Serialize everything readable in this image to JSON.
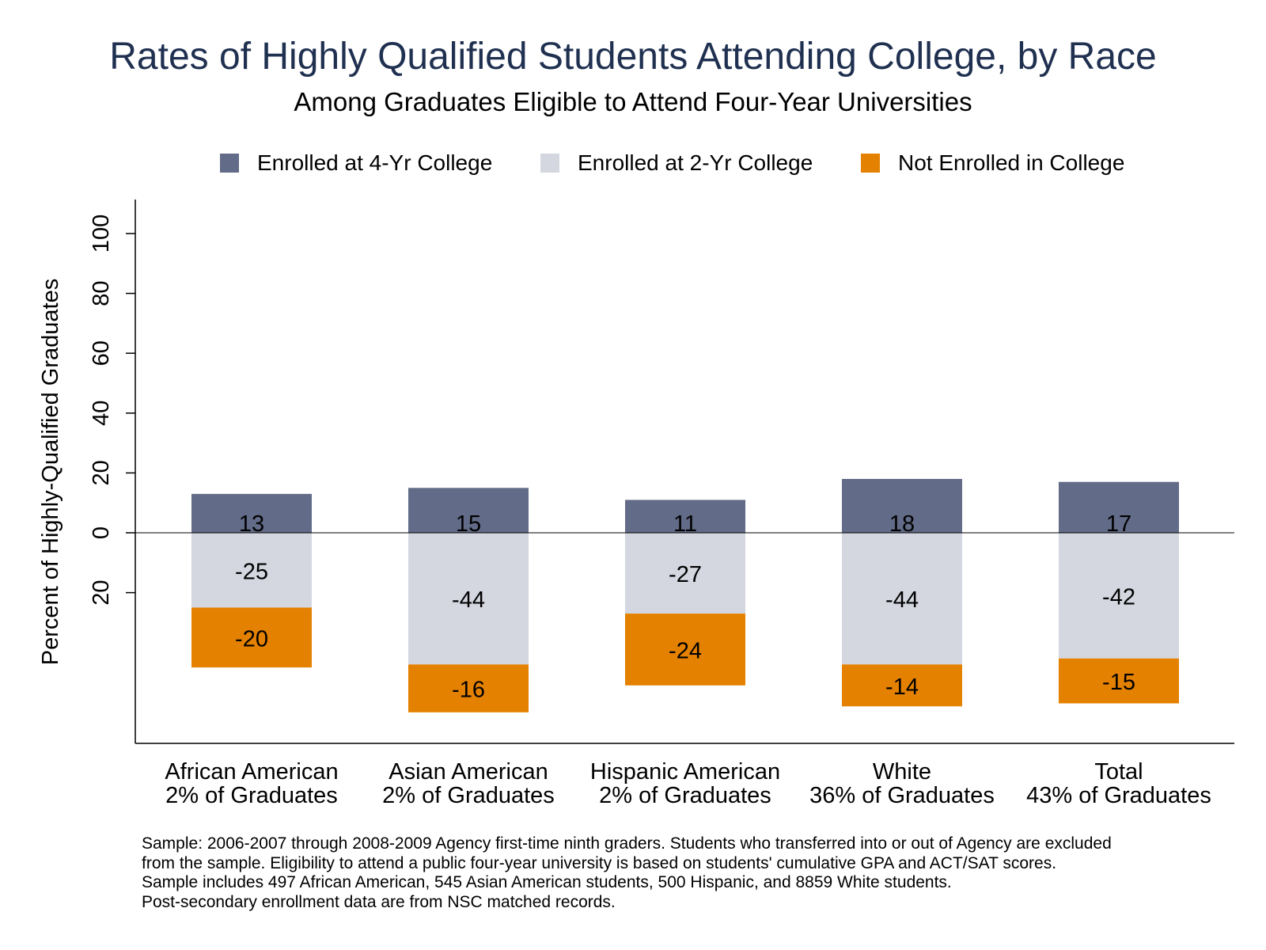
{
  "chart_data": {
    "type": "bar",
    "stacked": true,
    "title": "Rates of Highly Qualified Students Attending College, by Race",
    "subtitle": "Among Graduates Eligible to Attend Four-Year Universities",
    "ylabel": "Percent of Highly-Qualified Graduates",
    "xlabel": "",
    "ylim": [
      -70,
      100
    ],
    "yticks": [
      {
        "value": 100,
        "label": "100"
      },
      {
        "value": 80,
        "label": "80"
      },
      {
        "value": 60,
        "label": "60"
      },
      {
        "value": 40,
        "label": "40"
      },
      {
        "value": 20,
        "label": "20"
      },
      {
        "value": 0,
        "label": "0"
      },
      {
        "value": -20,
        "label": "20"
      }
    ],
    "categories": [
      {
        "name": "African American",
        "share": "2% of Graduates"
      },
      {
        "name": "Asian American",
        "share": "2% of Graduates"
      },
      {
        "name": "Hispanic American",
        "share": "2% of Graduates"
      },
      {
        "name": "White",
        "share": "36% of Graduates"
      },
      {
        "name": "Total",
        "share": "43% of Graduates"
      }
    ],
    "series": [
      {
        "name": "Enrolled at 4-Yr College",
        "color": "#626b87",
        "values": [
          13,
          15,
          11,
          18,
          17
        ],
        "labels": [
          "13",
          "15",
          "11",
          "18",
          "17"
        ]
      },
      {
        "name": "Enrolled at 2-Yr College",
        "color": "#d4d6e0",
        "values": [
          -25,
          -44,
          -27,
          -44,
          -42
        ],
        "labels": [
          "-25",
          "-44",
          "-27",
          "-44",
          "-42"
        ]
      },
      {
        "name": "Not Enrolled in College",
        "color": "#e48100",
        "values": [
          -20,
          -16,
          -24,
          -14,
          -15
        ],
        "labels": [
          "-20",
          "-16",
          "-24",
          "-14",
          "-15"
        ]
      }
    ],
    "legend": "top",
    "grid": false
  },
  "footnote": [
    "Sample: 2006-2007 through 2008-2009 Agency first-time ninth graders. Students who transferred into or out of Agency are excluded",
    "from the sample. Eligibility to attend a public four-year university is based on students' cumulative GPA and ACT/SAT scores.",
    "Sample includes 497 African American, 545 Asian American students, 500 Hispanic, and 8859 White students.",
    "Post-secondary enrollment data are from NSC matched records."
  ]
}
